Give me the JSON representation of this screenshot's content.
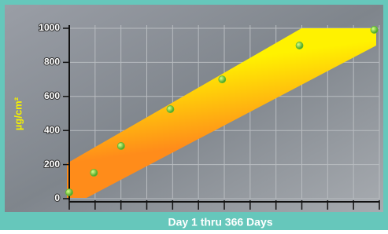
{
  "chart_data": {
    "type": "scatter",
    "ylabel": "µg/cm²",
    "xlabel": "Day 1 thru 366 Days",
    "x": [
      1,
      30,
      62,
      120,
      181,
      272,
      360
    ],
    "values": [
      37,
      152,
      309,
      525,
      700,
      899,
      991
    ],
    "color": "#5cb82e",
    "xlim": [
      1,
      366
    ],
    "ylim": [
      0,
      1000
    ],
    "yticks": [
      0,
      200,
      400,
      600,
      800,
      1000
    ],
    "grid": true
  }
}
